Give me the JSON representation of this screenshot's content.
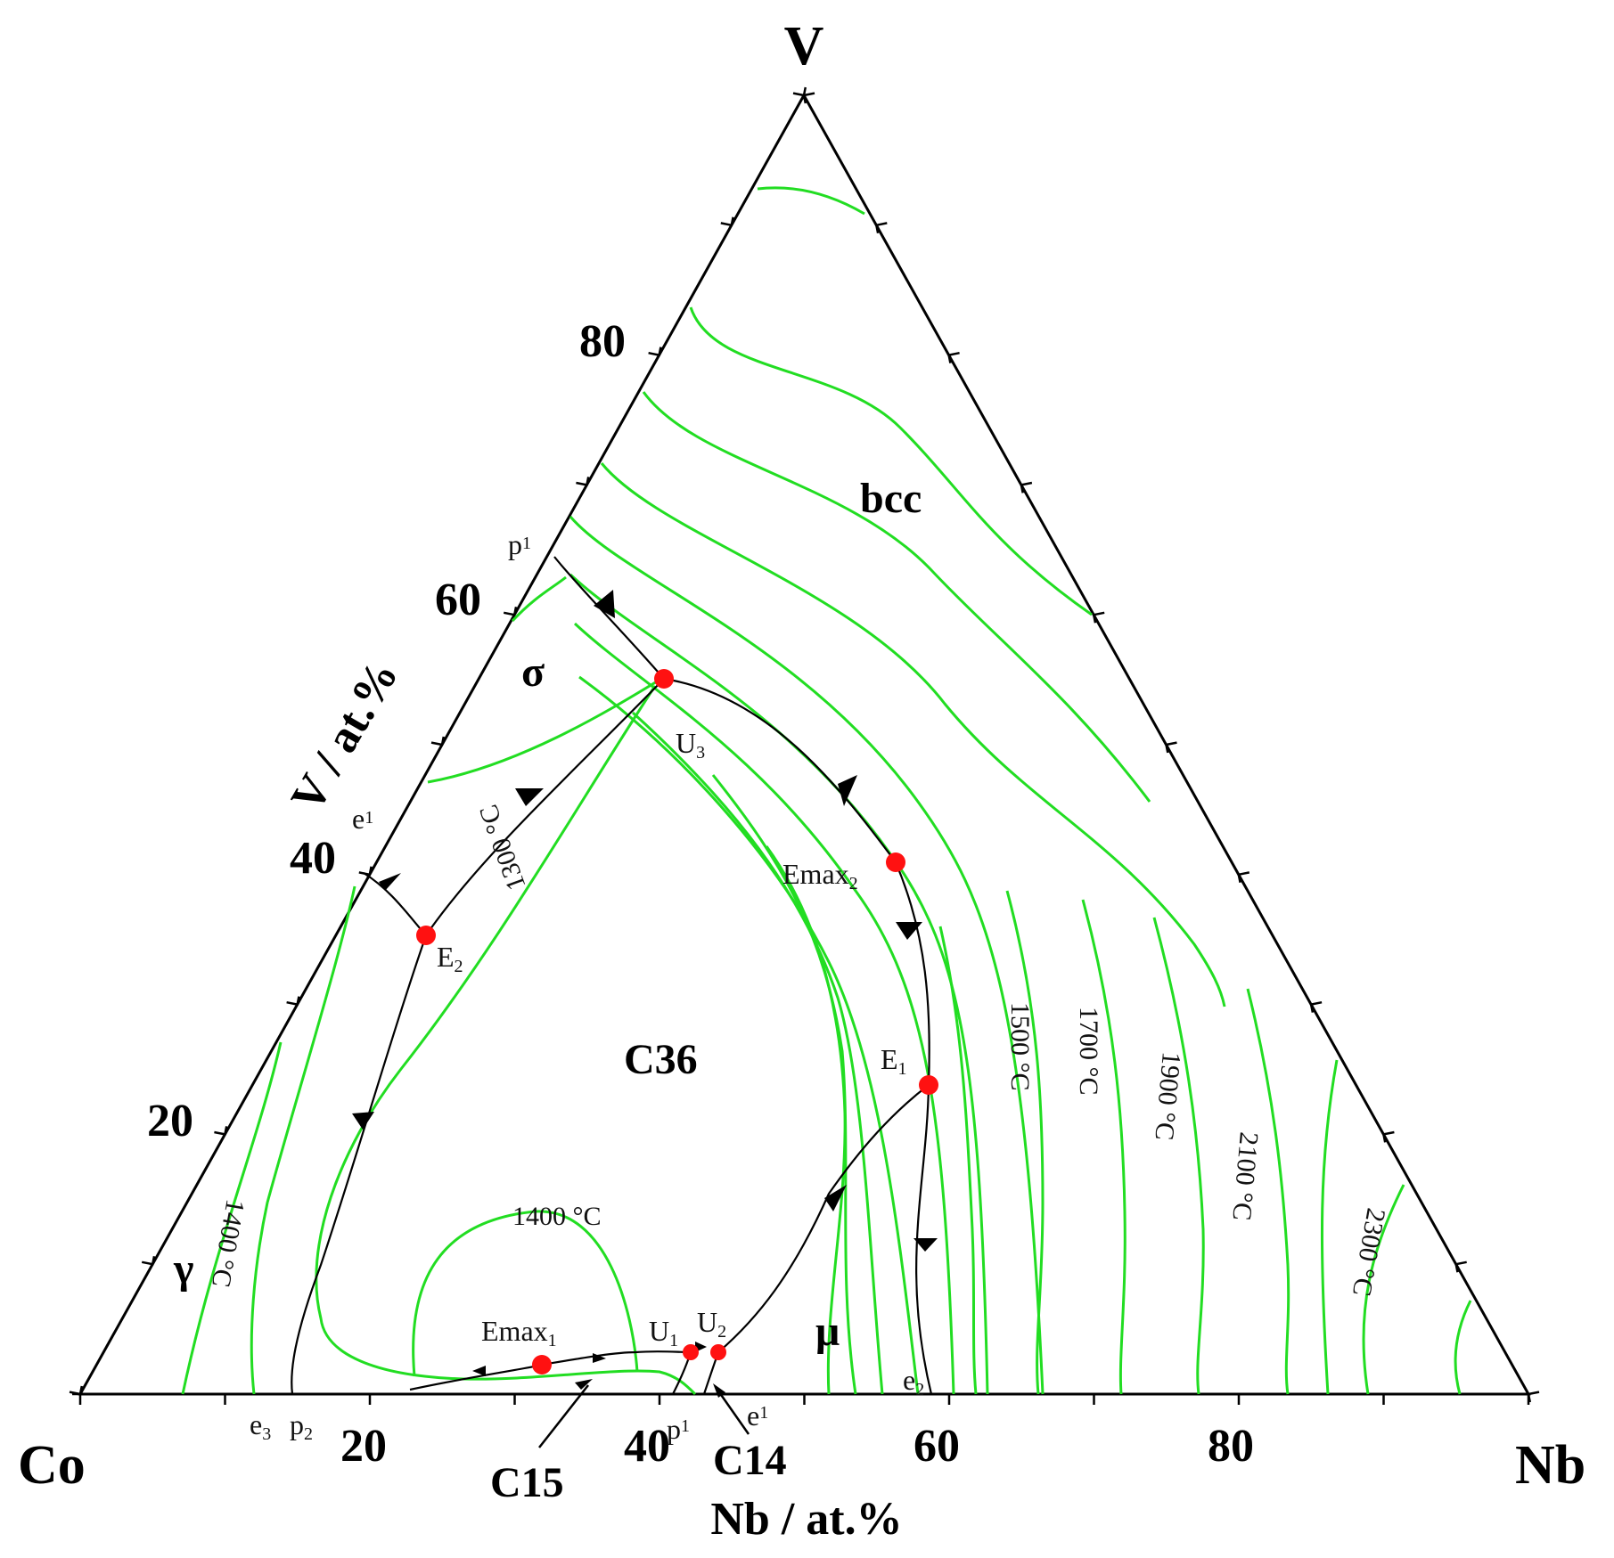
{
  "corners": {
    "top": "V",
    "left": "Co",
    "right": "Nb"
  },
  "axes": {
    "left_label": "V / at.%",
    "bottom_label": "Nb / at.%"
  },
  "left_ticks": [
    "80",
    "60",
    "40",
    "20"
  ],
  "bottom_ticks": [
    "20",
    "40",
    "60",
    "80"
  ],
  "phases": {
    "bcc": "bcc",
    "sigma": "σ",
    "c36": "C36",
    "gamma": "γ",
    "mu": "μ",
    "c15": "C15",
    "c14": "C14"
  },
  "points": {
    "p1_top": "p",
    "p1_top_sub": "1",
    "e1_left": "e",
    "e1_left_sub": "1",
    "u3": "U",
    "u3_sub": "3",
    "e2": "E",
    "e2_sub": "2",
    "emax2": "Emax",
    "emax2_sub": "2",
    "e1_inner": "E",
    "e1_inner_sub": "1",
    "emax1": "Emax",
    "emax1_sub": "1",
    "u1": "U",
    "u1_sub": "1",
    "u2": "U",
    "u2_sub": "2",
    "e3": "e",
    "e3_sub": "3",
    "p2": "p",
    "p2_sub": "2",
    "p1_bottom": "p",
    "p1_bottom_sub": "1",
    "e1_bottom": "e",
    "e1_bottom_sub": "1",
    "e2_bottom": "e",
    "e2_bottom_sub": "2"
  },
  "isotherms": {
    "t1300": "1300 °C",
    "t1400_top": "1400 °C",
    "t1400_left": "1400 °C",
    "t1500": "1500 °C",
    "t1700": "1700 °C",
    "t1900": "1900 °C",
    "t2100": "2100 °C",
    "t2300": "2300 °C"
  },
  "colors": {
    "isotherm": "#22dd22",
    "invariant_point": "#ff0000",
    "lines": "#000000"
  }
}
